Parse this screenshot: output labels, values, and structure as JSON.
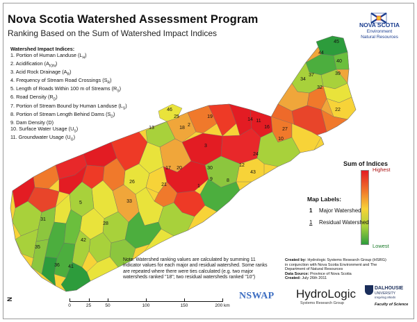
{
  "title": "Nova Scotia Watershed Assessment Program",
  "subtitle": "Ranking Based on the Sum of Watershed Impact Indices",
  "logo_ns": {
    "name": "NOVA SCOTIA",
    "line1": "Environment",
    "line2": "Natural Resources"
  },
  "indices": {
    "heading": "Watershed Impact Indices:",
    "items": [
      "1. Portion of Human Landuse (L",
      "2. Acidification (A",
      "3. Acid Rock Drainage (A",
      "4. Frequency of Stream Road Crossings (S",
      "5. Length of Roads Within 100 m of Streams (R",
      "6. Road Density (R",
      "7. Portion of Stream Bound by Human Landuse (L",
      "8. Portion of Stream Length Behind Dams (S",
      "9. Dam Density (D)",
      "10. Surface Water Usage (U",
      "11. Groundwater Usage (U"
    ],
    "subscripts": [
      "H",
      "ION",
      "R",
      "R",
      "S",
      "D",
      "S",
      "D",
      "",
      "S",
      "G"
    ]
  },
  "legend": {
    "title": "Sum of Indices",
    "high": "Highest",
    "low": "Lowest",
    "colors": [
      "#e31c23",
      "#f0792b",
      "#f7d338",
      "#a8d13b",
      "#2d9c3c"
    ]
  },
  "map_labels": {
    "heading": "Map Labels:",
    "major_example": "1",
    "major_label": "Major Watershed",
    "residual_example": "1",
    "residual_label": "Residual Watershed"
  },
  "note": "Note: Watershed ranking values are calculated by summing 11 indicator values for each major and residual watershed.  Some ranks are repeated where there were ties calculated (e.g. two major watersheds ranked \"18\"; two residual watersheds ranked \"10\")",
  "credits": {
    "created_by_label": "Created by:",
    "created_by": "Hydrologic Systems Research Group (HSRG)",
    "conjunction": "in conjunction with Nova Scotia Environment and The Department of Natural Resources",
    "data_source_label": "Data Source:",
    "data_source": "Province of Nova Scotia",
    "created_label": "Created:",
    "created": "July 26th 2011"
  },
  "logos": {
    "nswap": "NSWAP",
    "hydrologic": "HydroLogic",
    "hydrologic_sub": "Systems Research Group",
    "dal1": "DALHOUSIE",
    "dal2": "UNIVERSITY",
    "dal3": "Inspiring Minds",
    "dal4": "Faculty of Science"
  },
  "scale": {
    "labels": [
      "0",
      "25",
      "50",
      "100",
      "150",
      "200 km"
    ],
    "km": [
      0,
      25,
      50,
      100,
      150,
      200
    ]
  },
  "north_label": "N",
  "watershed_labels": [
    {
      "label": "45",
      "type": "major"
    },
    {
      "label": "44",
      "type": "major"
    },
    {
      "label": "40",
      "type": "major"
    },
    {
      "label": "39",
      "type": "major"
    },
    {
      "label": "37",
      "type": "major"
    },
    {
      "label": "34",
      "type": "major"
    },
    {
      "label": "32",
      "type": "major"
    },
    {
      "label": "22",
      "type": "major"
    },
    {
      "label": "46",
      "type": "major"
    },
    {
      "label": "25",
      "type": "major"
    },
    {
      "label": "13",
      "type": "major"
    },
    {
      "label": "18",
      "type": "major"
    },
    {
      "label": "19",
      "type": "major"
    },
    {
      "label": "2",
      "type": "major"
    },
    {
      "label": "14",
      "type": "major"
    },
    {
      "label": "11",
      "type": "major"
    },
    {
      "label": "16",
      "type": "major"
    },
    {
      "label": "27",
      "type": "major"
    },
    {
      "label": "10",
      "type": "major"
    },
    {
      "label": "3",
      "type": "major"
    },
    {
      "label": "24",
      "type": "major"
    },
    {
      "label": "12",
      "type": "major"
    },
    {
      "label": "17",
      "type": "major"
    },
    {
      "label": "20",
      "type": "major"
    },
    {
      "label": "30",
      "type": "major"
    },
    {
      "label": "43",
      "type": "major"
    },
    {
      "label": "9",
      "type": "major"
    },
    {
      "label": "1",
      "type": "major"
    },
    {
      "label": "8",
      "type": "major"
    },
    {
      "label": "21",
      "type": "major"
    },
    {
      "label": "26",
      "type": "major"
    },
    {
      "label": "33",
      "type": "major"
    },
    {
      "label": "28",
      "type": "major"
    },
    {
      "label": "5",
      "type": "major"
    },
    {
      "label": "31",
      "type": "major"
    },
    {
      "label": "42",
      "type": "major"
    },
    {
      "label": "35",
      "type": "major"
    },
    {
      "label": "41",
      "type": "major"
    },
    {
      "label": "36",
      "type": "major"
    }
  ]
}
